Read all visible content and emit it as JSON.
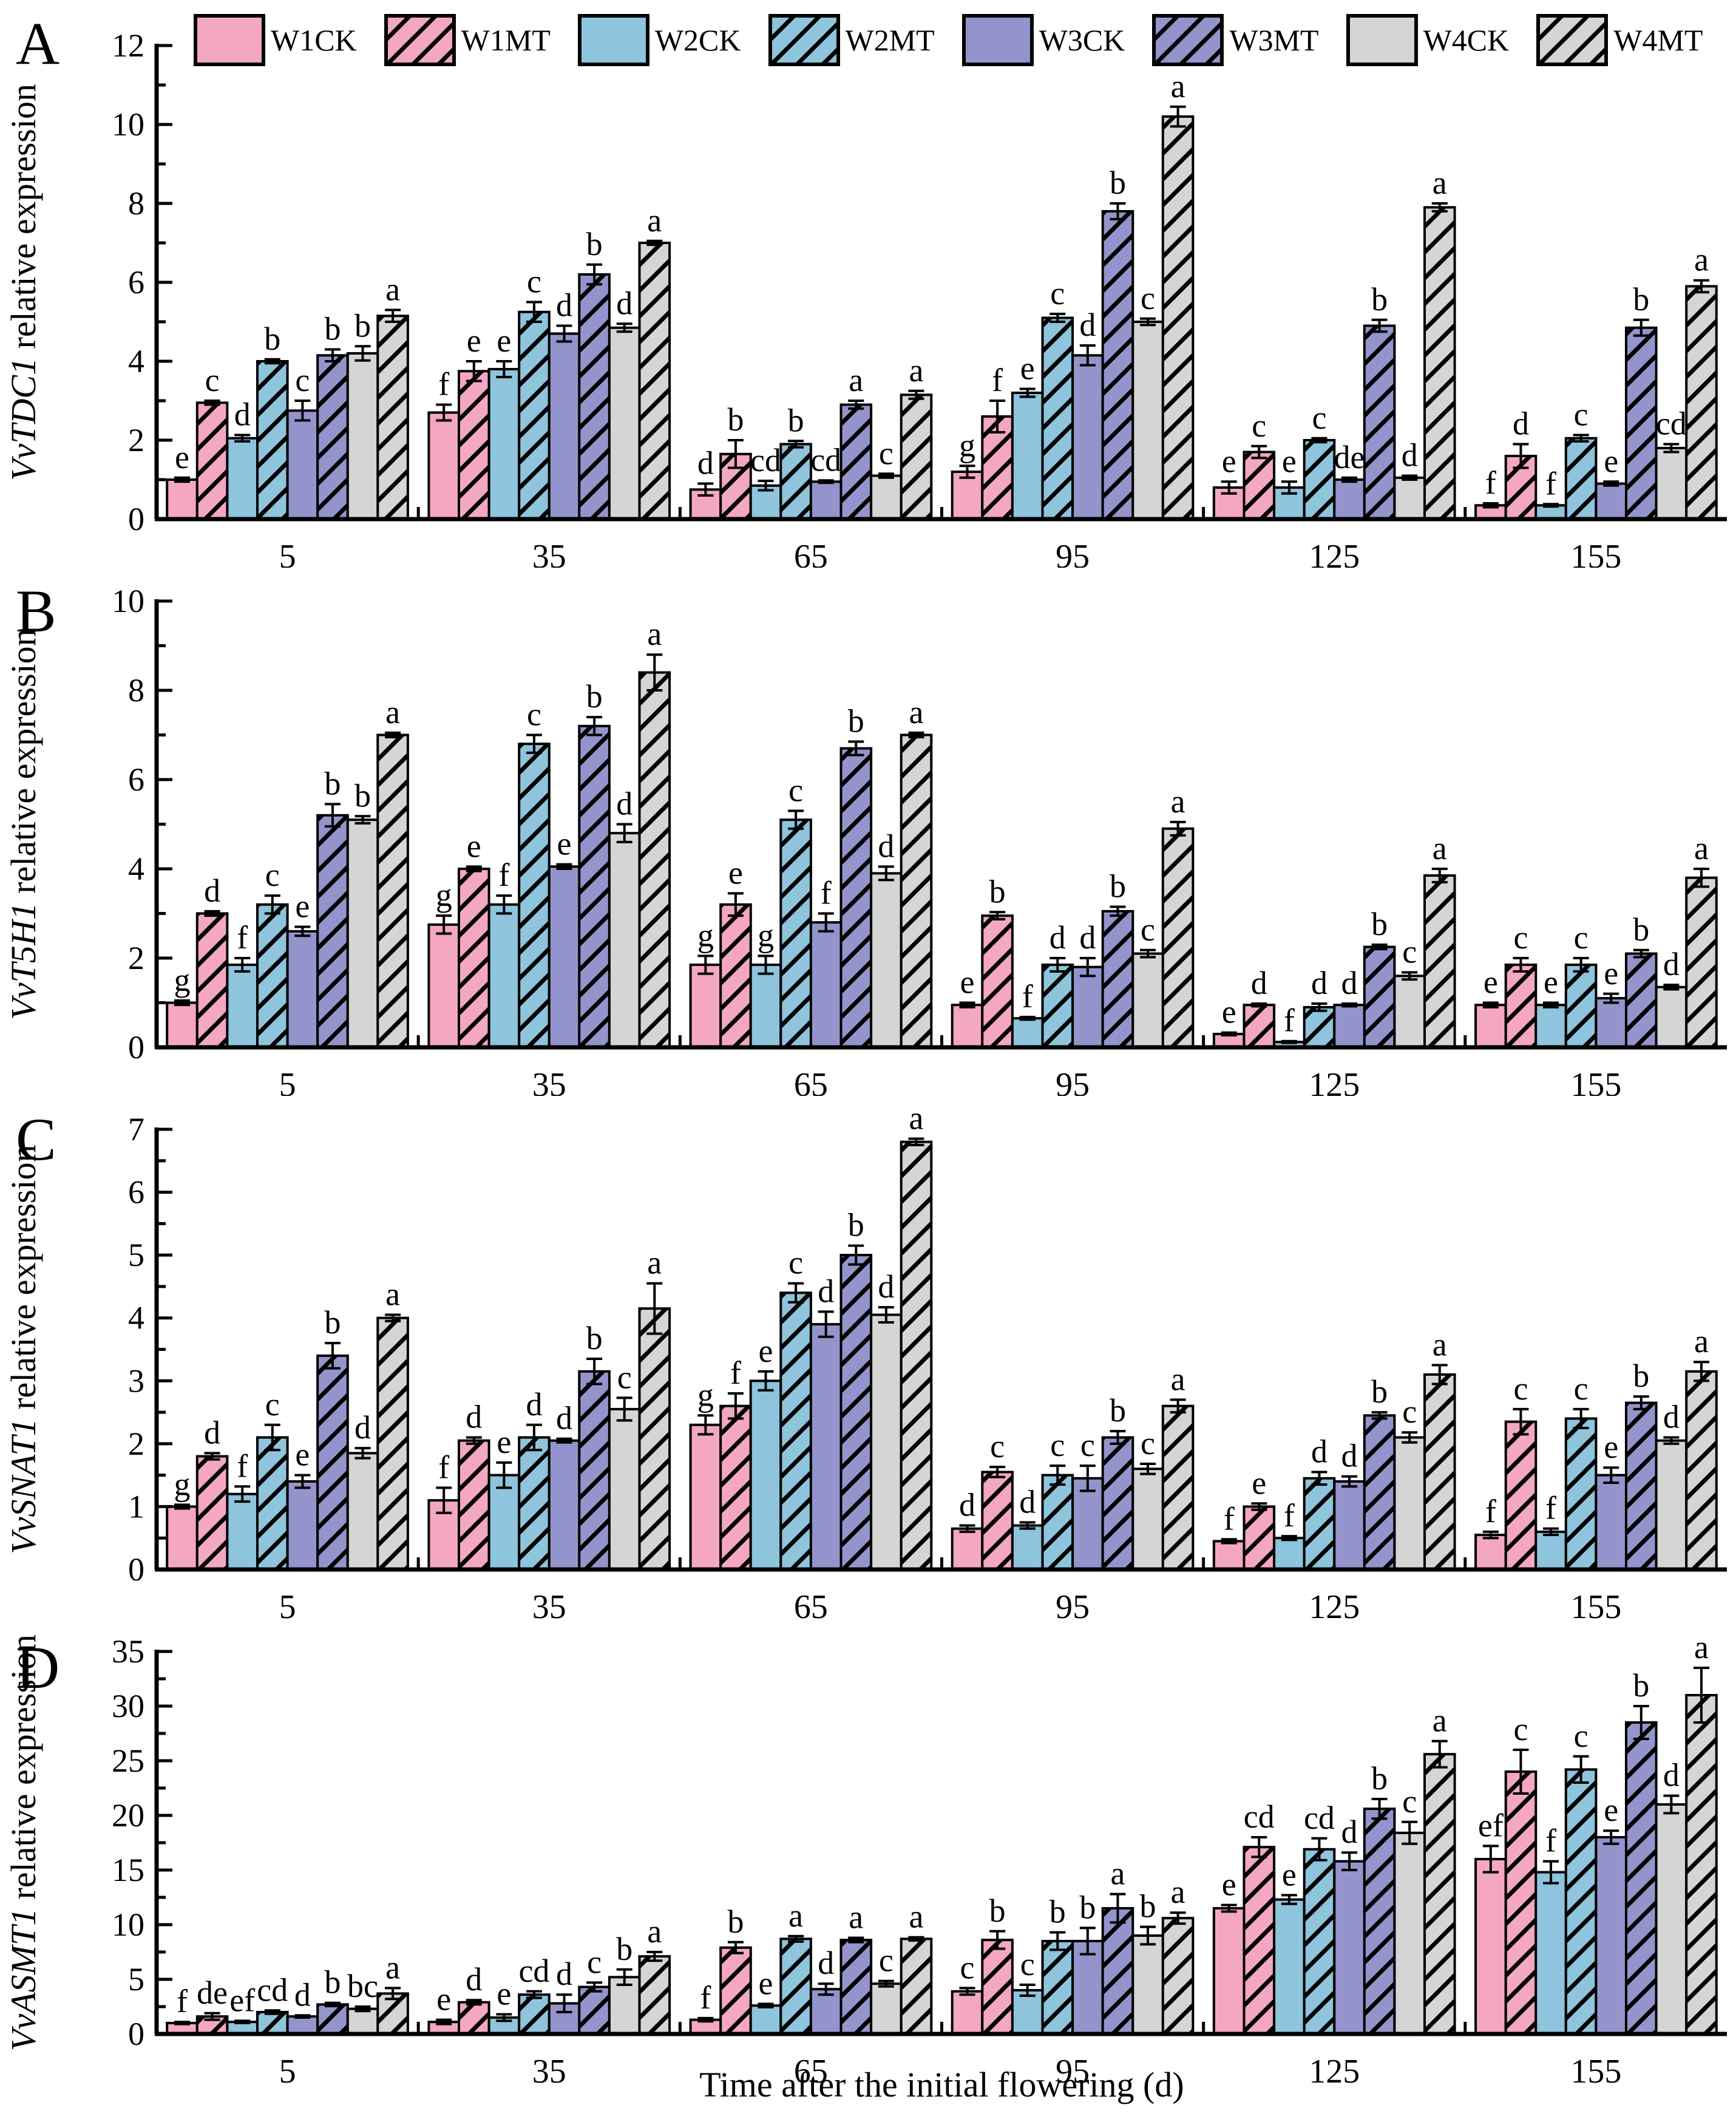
{
  "page": {
    "xlabel": "Time after the initial flowering (d)"
  },
  "colors": {
    "pink": "#F3A7C2",
    "blue": "#8EC4DC",
    "purple": "#9494CC",
    "gray": "#D5D5D5",
    "outline": "#000000"
  },
  "legend": [
    {
      "label": "W1CK",
      "color": "#F3A7C2",
      "hatch": false
    },
    {
      "label": "W1MT",
      "color": "#F3A7C2",
      "hatch": true
    },
    {
      "label": "W2CK",
      "color": "#8EC4DC",
      "hatch": false
    },
    {
      "label": "W2MT",
      "color": "#8EC4DC",
      "hatch": true
    },
    {
      "label": "W3CK",
      "color": "#9494CC",
      "hatch": false
    },
    {
      "label": "W3MT",
      "color": "#9494CC",
      "hatch": true
    },
    {
      "label": "W4CK",
      "color": "#D5D5D5",
      "hatch": false
    },
    {
      "label": "W4MT",
      "color": "#D5D5D5",
      "hatch": true
    }
  ],
  "chart_data": [
    {
      "type": "bar",
      "panel_label": "A",
      "ylabel_gene": "VvTDC1",
      "ylabel_rest": " relative expression",
      "ylim": [
        0,
        12
      ],
      "ytick_major": 2,
      "ytick_minor": 1,
      "grid": false,
      "legend_position": "top",
      "categories": [
        "5",
        "35",
        "65",
        "95",
        "125",
        "155"
      ],
      "series": [
        {
          "name": "W1CK",
          "values": [
            1.0,
            2.7,
            0.75,
            1.2,
            0.8,
            0.35
          ],
          "errors": [
            0.05,
            0.2,
            0.15,
            0.15,
            0.15,
            0.05
          ],
          "letters": [
            "e",
            "f",
            "d",
            "g",
            "e",
            "f"
          ]
        },
        {
          "name": "W1MT",
          "values": [
            2.95,
            3.75,
            1.65,
            2.6,
            1.7,
            1.6
          ],
          "errors": [
            0.05,
            0.25,
            0.35,
            0.4,
            0.15,
            0.3
          ],
          "letters": [
            "c",
            "e",
            "b",
            "f",
            "c",
            "d"
          ]
        },
        {
          "name": "W2CK",
          "values": [
            2.05,
            3.8,
            0.85,
            3.2,
            0.8,
            0.35
          ],
          "errors": [
            0.08,
            0.2,
            0.12,
            0.1,
            0.15,
            0.03
          ],
          "letters": [
            "d",
            "e",
            "cd",
            "e",
            "e",
            "f"
          ]
        },
        {
          "name": "W2MT",
          "values": [
            4.0,
            5.25,
            1.9,
            5.1,
            2.0,
            2.05
          ],
          "errors": [
            0.05,
            0.25,
            0.08,
            0.1,
            0.05,
            0.08
          ],
          "letters": [
            "b",
            "c",
            "b",
            "c",
            "c",
            "c"
          ]
        },
        {
          "name": "W3CK",
          "values": [
            2.75,
            4.7,
            0.95,
            4.15,
            1.0,
            0.9
          ],
          "errors": [
            0.25,
            0.2,
            0.03,
            0.25,
            0.05,
            0.05
          ],
          "letters": [
            "c",
            "d",
            "cd",
            "d",
            "de",
            "e"
          ]
        },
        {
          "name": "W3MT",
          "values": [
            4.15,
            6.2,
            2.9,
            7.8,
            4.9,
            4.85
          ],
          "errors": [
            0.15,
            0.25,
            0.1,
            0.2,
            0.15,
            0.2
          ],
          "letters": [
            "b",
            "b",
            "a",
            "b",
            "b",
            "b"
          ]
        },
        {
          "name": "W4CK",
          "values": [
            4.2,
            4.85,
            1.1,
            5.0,
            1.05,
            1.8
          ],
          "errors": [
            0.18,
            0.1,
            0.05,
            0.08,
            0.05,
            0.1
          ],
          "letters": [
            "b",
            "d",
            "c",
            "c",
            "d",
            "cd"
          ]
        },
        {
          "name": "W4MT",
          "values": [
            5.15,
            7.0,
            3.15,
            10.2,
            7.9,
            5.9
          ],
          "errors": [
            0.15,
            0.05,
            0.1,
            0.25,
            0.1,
            0.15
          ],
          "letters": [
            "a",
            "a",
            "a",
            "a",
            "a",
            "a"
          ]
        }
      ]
    },
    {
      "type": "bar",
      "panel_label": "B",
      "ylabel_gene": "VvT5H1",
      "ylabel_rest": " relative expression",
      "ylim": [
        0,
        10
      ],
      "ytick_major": 2,
      "ytick_minor": 1,
      "grid": false,
      "legend_position": "none",
      "categories": [
        "5",
        "35",
        "65",
        "95",
        "125",
        "155"
      ],
      "series": [
        {
          "name": "W1CK",
          "values": [
            1.0,
            2.75,
            1.85,
            0.95,
            0.3,
            0.95
          ],
          "errors": [
            0.05,
            0.2,
            0.2,
            0.05,
            0.03,
            0.05
          ],
          "letters": [
            "g",
            "g",
            "g",
            "e",
            "e",
            "e"
          ]
        },
        {
          "name": "W1MT",
          "values": [
            3.0,
            4.0,
            3.2,
            2.95,
            0.95,
            1.85
          ],
          "errors": [
            0.05,
            0.05,
            0.25,
            0.08,
            0.03,
            0.15
          ],
          "letters": [
            "d",
            "e",
            "e",
            "b",
            "d",
            "c"
          ]
        },
        {
          "name": "W2CK",
          "values": [
            1.85,
            3.2,
            1.85,
            0.65,
            0.12,
            0.95
          ],
          "errors": [
            0.15,
            0.2,
            0.2,
            0.03,
            0.02,
            0.05
          ],
          "letters": [
            "f",
            "f",
            "g",
            "f",
            "f",
            "e"
          ]
        },
        {
          "name": "W2MT",
          "values": [
            3.2,
            6.8,
            5.1,
            1.85,
            0.9,
            1.85
          ],
          "errors": [
            0.2,
            0.2,
            0.2,
            0.15,
            0.08,
            0.15
          ],
          "letters": [
            "c",
            "c",
            "c",
            "d",
            "d",
            "c"
          ]
        },
        {
          "name": "W3CK",
          "values": [
            2.6,
            4.05,
            2.8,
            1.8,
            0.95,
            1.1
          ],
          "errors": [
            0.1,
            0.05,
            0.2,
            0.2,
            0.03,
            0.1
          ],
          "letters": [
            "e",
            "e",
            "f",
            "d",
            "d",
            "e"
          ]
        },
        {
          "name": "W3MT",
          "values": [
            5.2,
            7.2,
            6.7,
            3.05,
            2.25,
            2.1
          ],
          "errors": [
            0.25,
            0.2,
            0.15,
            0.1,
            0.05,
            0.08
          ],
          "letters": [
            "b",
            "b",
            "b",
            "b",
            "b",
            "b"
          ]
        },
        {
          "name": "W4CK",
          "values": [
            5.1,
            4.8,
            3.9,
            2.1,
            1.6,
            1.35
          ],
          "errors": [
            0.08,
            0.2,
            0.15,
            0.08,
            0.08,
            0.05
          ],
          "letters": [
            "b",
            "d",
            "d",
            "c",
            "c",
            "d"
          ]
        },
        {
          "name": "W4MT",
          "values": [
            7.0,
            8.4,
            7.0,
            4.9,
            3.85,
            3.8
          ],
          "errors": [
            0.05,
            0.4,
            0.05,
            0.15,
            0.15,
            0.2
          ],
          "letters": [
            "a",
            "a",
            "a",
            "a",
            "a",
            "a"
          ]
        }
      ]
    },
    {
      "type": "bar",
      "panel_label": "C",
      "ylabel_gene": "VvSNAT1",
      "ylabel_rest": " relative expression",
      "ylim": [
        0,
        7
      ],
      "ytick_major": 1,
      "ytick_minor": 0.5,
      "grid": false,
      "legend_position": "none",
      "categories": [
        "5",
        "35",
        "65",
        "95",
        "125",
        "155"
      ],
      "series": [
        {
          "name": "W1CK",
          "values": [
            1.0,
            1.1,
            2.3,
            0.65,
            0.45,
            0.55
          ],
          "errors": [
            0.03,
            0.2,
            0.15,
            0.05,
            0.03,
            0.05
          ],
          "letters": [
            "g",
            "f",
            "g",
            "d",
            "f",
            "f"
          ]
        },
        {
          "name": "W1MT",
          "values": [
            1.8,
            2.05,
            2.6,
            1.55,
            1.0,
            2.35
          ],
          "errors": [
            0.05,
            0.05,
            0.2,
            0.08,
            0.05,
            0.2
          ],
          "letters": [
            "d",
            "d",
            "f",
            "c",
            "e",
            "c"
          ]
        },
        {
          "name": "W2CK",
          "values": [
            1.2,
            1.5,
            3.0,
            0.7,
            0.5,
            0.6
          ],
          "errors": [
            0.12,
            0.2,
            0.15,
            0.05,
            0.03,
            0.05
          ],
          "letters": [
            "f",
            "e",
            "e",
            "d",
            "f",
            "f"
          ]
        },
        {
          "name": "W2MT",
          "values": [
            2.1,
            2.1,
            4.4,
            1.5,
            1.45,
            2.4
          ],
          "errors": [
            0.2,
            0.2,
            0.15,
            0.15,
            0.1,
            0.15
          ],
          "letters": [
            "c",
            "d",
            "c",
            "c",
            "d",
            "c"
          ]
        },
        {
          "name": "W3CK",
          "values": [
            1.4,
            2.05,
            3.9,
            1.45,
            1.4,
            1.5
          ],
          "errors": [
            0.1,
            0.03,
            0.2,
            0.2,
            0.08,
            0.12
          ],
          "letters": [
            "e",
            "d",
            "d",
            "c",
            "d",
            "e"
          ]
        },
        {
          "name": "W3MT",
          "values": [
            3.4,
            3.15,
            5.0,
            2.1,
            2.45,
            2.65
          ],
          "errors": [
            0.2,
            0.2,
            0.15,
            0.1,
            0.05,
            0.1
          ],
          "letters": [
            "b",
            "b",
            "b",
            "b",
            "b",
            "b"
          ]
        },
        {
          "name": "W4CK",
          "values": [
            1.85,
            2.55,
            4.05,
            1.6,
            2.1,
            2.05
          ],
          "errors": [
            0.08,
            0.18,
            0.12,
            0.08,
            0.08,
            0.05
          ],
          "letters": [
            "d",
            "c",
            "d",
            "c",
            "c",
            "d"
          ]
        },
        {
          "name": "W4MT",
          "values": [
            4.0,
            4.15,
            6.8,
            2.6,
            3.1,
            3.15
          ],
          "errors": [
            0.05,
            0.4,
            0.05,
            0.1,
            0.15,
            0.15
          ],
          "letters": [
            "a",
            "a",
            "a",
            "a",
            "a",
            "a"
          ]
        }
      ]
    },
    {
      "type": "bar",
      "panel_label": "D",
      "ylabel_gene": "VvASMT1",
      "ylabel_rest": " relative expression",
      "ylim": [
        0,
        35
      ],
      "ytick_major": 5,
      "ytick_minor": 2.5,
      "grid": false,
      "legend_position": "none",
      "categories": [
        "5",
        "35",
        "65",
        "95",
        "125",
        "155"
      ],
      "series": [
        {
          "name": "W1CK",
          "values": [
            1.0,
            1.1,
            1.3,
            3.9,
            11.5,
            16.0
          ],
          "errors": [
            0.1,
            0.2,
            0.15,
            0.3,
            0.3,
            1.2
          ],
          "letters": [
            "f",
            "e",
            "f",
            "c",
            "e",
            "ef"
          ]
        },
        {
          "name": "W1MT",
          "values": [
            1.6,
            2.9,
            7.9,
            8.6,
            17.1,
            24.0
          ],
          "errors": [
            0.3,
            0.2,
            0.5,
            0.8,
            0.9,
            2.0
          ],
          "letters": [
            "de",
            "d",
            "b",
            "b",
            "cd",
            "c"
          ]
        },
        {
          "name": "W2CK",
          "values": [
            1.1,
            1.5,
            2.6,
            4.0,
            12.3,
            14.8
          ],
          "errors": [
            0.1,
            0.3,
            0.15,
            0.5,
            0.4,
            1.0
          ],
          "letters": [
            "ef",
            "e",
            "e",
            "c",
            "e",
            "f"
          ]
        },
        {
          "name": "W2MT",
          "values": [
            2.0,
            3.6,
            8.7,
            8.5,
            16.9,
            24.2
          ],
          "errors": [
            0.15,
            0.3,
            0.25,
            0.8,
            1.0,
            1.2
          ],
          "letters": [
            "cd",
            "cd",
            "a",
            "b",
            "cd",
            "c"
          ]
        },
        {
          "name": "W3CK",
          "values": [
            1.6,
            2.8,
            4.1,
            8.5,
            15.8,
            18.0
          ],
          "errors": [
            0.1,
            0.8,
            0.5,
            1.2,
            0.8,
            0.6
          ],
          "letters": [
            "d",
            "d",
            "d",
            "b",
            "d",
            "e"
          ]
        },
        {
          "name": "W3MT",
          "values": [
            2.7,
            4.3,
            8.6,
            11.5,
            20.6,
            28.5
          ],
          "errors": [
            0.15,
            0.4,
            0.2,
            1.3,
            0.9,
            1.5
          ],
          "letters": [
            "b",
            "c",
            "a",
            "a",
            "b",
            "b"
          ]
        },
        {
          "name": "W4CK",
          "values": [
            2.3,
            5.2,
            4.6,
            9.0,
            18.4,
            21.0
          ],
          "errors": [
            0.2,
            0.7,
            0.25,
            0.8,
            1.0,
            0.8
          ],
          "letters": [
            "bc",
            "b",
            "c",
            "b",
            "c",
            "d"
          ]
        },
        {
          "name": "W4MT",
          "values": [
            3.7,
            7.1,
            8.7,
            10.6,
            25.6,
            31.0
          ],
          "errors": [
            0.5,
            0.4,
            0.15,
            0.5,
            1.2,
            2.5
          ],
          "letters": [
            "a",
            "a",
            "a",
            "a",
            "a",
            "a"
          ]
        }
      ]
    }
  ]
}
